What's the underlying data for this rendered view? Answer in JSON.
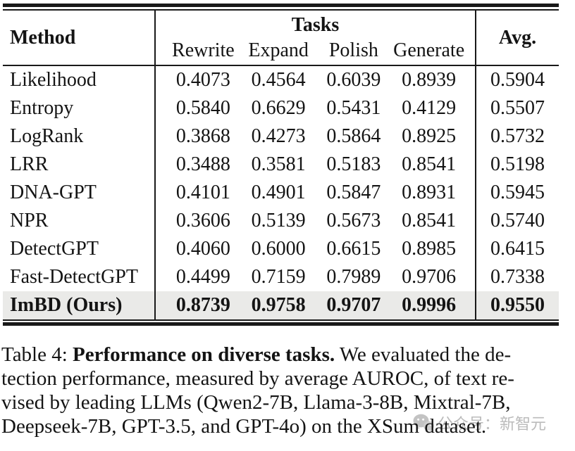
{
  "table": {
    "header": {
      "method_label": "Method",
      "tasks_label": "Tasks",
      "task_columns": [
        "Rewrite",
        "Expand",
        "Polish",
        "Generate"
      ],
      "avg_label": "Avg."
    },
    "rows": [
      {
        "method": "Likelihood",
        "values": [
          "0.4073",
          "0.4564",
          "0.6039",
          "0.8939"
        ],
        "avg": "0.5904",
        "highlight": false
      },
      {
        "method": "Entropy",
        "values": [
          "0.5840",
          "0.6629",
          "0.5431",
          "0.4129"
        ],
        "avg": "0.5507",
        "highlight": false
      },
      {
        "method": "LogRank",
        "values": [
          "0.3868",
          "0.4273",
          "0.5864",
          "0.8925"
        ],
        "avg": "0.5732",
        "highlight": false
      },
      {
        "method": "LRR",
        "values": [
          "0.3488",
          "0.3581",
          "0.5183",
          "0.8541"
        ],
        "avg": "0.5198",
        "highlight": false
      },
      {
        "method": "DNA-GPT",
        "values": [
          "0.4101",
          "0.4901",
          "0.5847",
          "0.8931"
        ],
        "avg": "0.5945",
        "highlight": false
      },
      {
        "method": "NPR",
        "values": [
          "0.3606",
          "0.5139",
          "0.5673",
          "0.8541"
        ],
        "avg": "0.5740",
        "highlight": false
      },
      {
        "method": "DetectGPT",
        "values": [
          "0.4060",
          "0.6000",
          "0.6615",
          "0.8985"
        ],
        "avg": "0.6415",
        "highlight": false
      },
      {
        "method": "Fast-DetectGPT",
        "values": [
          "0.4499",
          "0.7159",
          "0.7989",
          "0.9706"
        ],
        "avg": "0.7338",
        "highlight": false
      },
      {
        "method": "ImBD (Ours)",
        "values": [
          "0.8739",
          "0.9758",
          "0.9707",
          "0.9996"
        ],
        "avg": "0.9550",
        "highlight": true
      }
    ],
    "highlight_bg": "#eaeae8"
  },
  "caption": {
    "lines": [
      [
        {
          "text": "Table 4: ",
          "bold": false
        },
        {
          "text": "Performance on diverse tasks.",
          "bold": true
        },
        {
          "text": " We evaluated the de-",
          "bold": false
        }
      ],
      [
        {
          "text": "tection performance, measured by average AUROC, of text re-",
          "bold": false
        }
      ],
      [
        {
          "text": "vised by leading LLMs (Qwen2-7B, Llama-3-8B, Mixtral-7B,",
          "bold": false
        }
      ],
      [
        {
          "text": "Deepseek-7B, GPT-3.5, and GPT-4o) on the XSum dataset.",
          "bold": false
        }
      ]
    ]
  },
  "watermark": {
    "icon": "wechat-icon",
    "text": "公众号：新智元",
    "color": "#ababab"
  }
}
